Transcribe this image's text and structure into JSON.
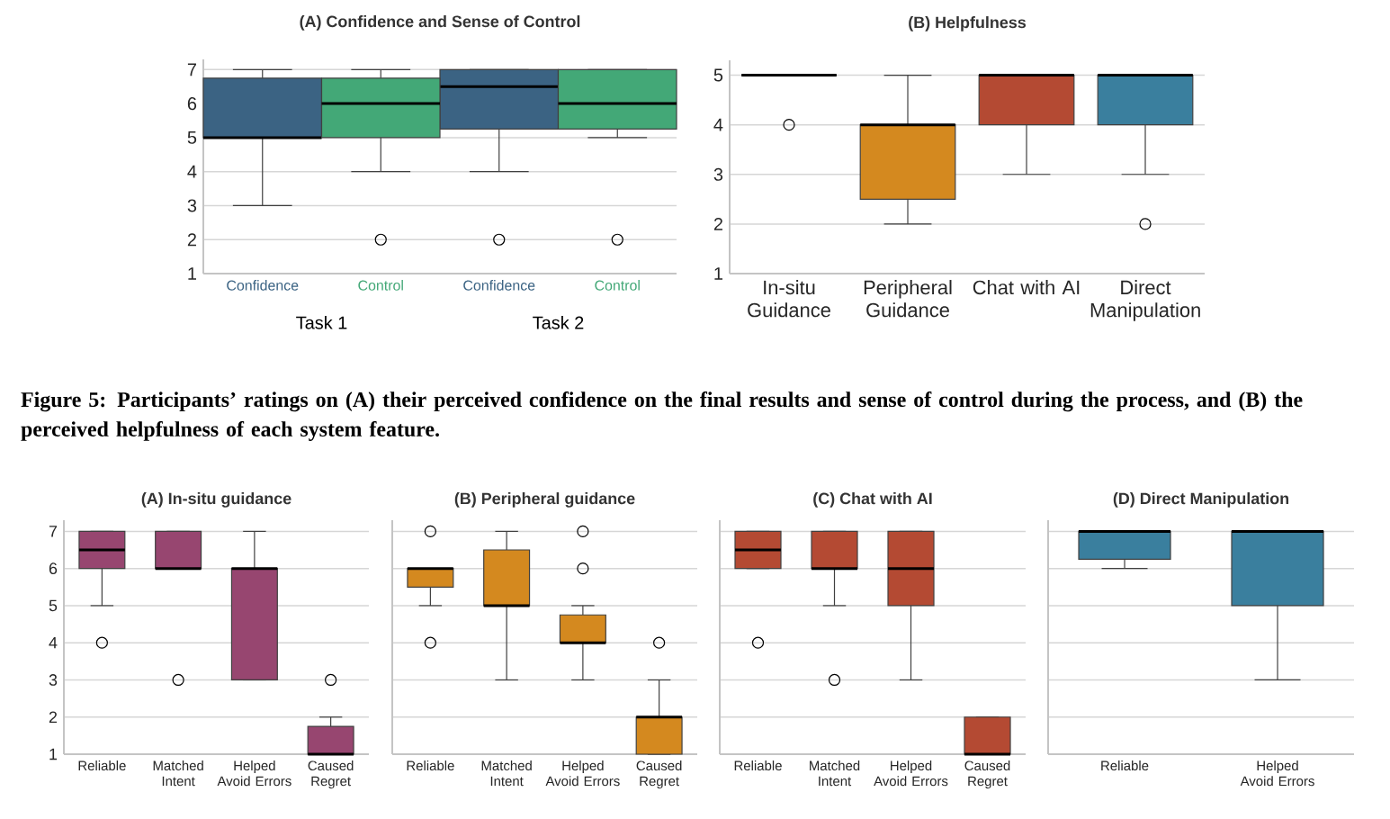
{
  "chart_data": [
    {
      "type": "box",
      "title": "(A) Confidence and Sense of Control",
      "categories": [
        "Task 1",
        "Task 2"
      ],
      "series": [
        {
          "name": "Confidence",
          "color": "#3b6383",
          "boxes": [
            {
              "low": 3,
              "q1": 5,
              "median": 5,
              "q3": 6.75,
              "high": 7
            },
            {
              "low": 4,
              "q1": 5.25,
              "median": 6.5,
              "q3": 7,
              "high": 7,
              "outliers": [
                2
              ]
            }
          ]
        },
        {
          "name": "Control",
          "color": "#43a877",
          "boxes": [
            {
              "low": 4,
              "q1": 5,
              "median": 6,
              "q3": 6.75,
              "high": 7,
              "outliers": [
                2
              ]
            },
            {
              "low": 5,
              "q1": 5.25,
              "median": 6,
              "q3": 7,
              "high": 7,
              "outliers": [
                2
              ]
            }
          ]
        }
      ],
      "ylim": [
        1,
        7.3
      ],
      "yticks": [
        1,
        2,
        3,
        4,
        5,
        6,
        7
      ],
      "grid": "y",
      "annotations": [
        "Figure 5: Participants’ ratings on (A) their perceived confidence on the final results and sense of control during the process, and (B) the perceived helpfulness of each system feature."
      ]
    },
    {
      "type": "box",
      "title": "(B) Helpfulness",
      "categories": [
        "In-situ Guidance",
        "Peripheral Guidance",
        "Chat with AI",
        "Direct Manipulation"
      ],
      "colors": [
        "#404040",
        "#d4891f",
        "#b44a33",
        "#3a7f9e"
      ],
      "boxes": [
        {
          "low": 5,
          "q1": 5,
          "median": 5,
          "q3": 5,
          "high": 5,
          "outliers": [
            4
          ]
        },
        {
          "low": 2,
          "q1": 2.5,
          "median": 4,
          "q3": 4,
          "high": 5
        },
        {
          "low": 3,
          "q1": 4,
          "median": 5,
          "q3": 5,
          "high": 5
        },
        {
          "low": 3,
          "q1": 4,
          "median": 5,
          "q3": 5,
          "high": 5,
          "outliers": [
            2
          ]
        }
      ],
      "ylim": [
        1,
        5.3
      ],
      "yticks": [
        1,
        2,
        3,
        4,
        5
      ],
      "grid": "y"
    },
    {
      "type": "box",
      "title": "(A) In-situ guidance",
      "categories": [
        "Reliable",
        "Matched Intent",
        "Helped Avoid Errors",
        "Caused Regret"
      ],
      "colors": [
        "#974670",
        "#974670",
        "#974670",
        "#974670"
      ],
      "boxes": [
        {
          "low": 5,
          "q1": 6,
          "median": 6.5,
          "q3": 7,
          "high": 7,
          "outliers": [
            4
          ]
        },
        {
          "low": 6,
          "q1": 6,
          "median": 6,
          "q3": 7,
          "high": 7,
          "outliers": [
            3
          ]
        },
        {
          "low": 3,
          "q1": 3,
          "median": 6,
          "q3": 6,
          "high": 7
        },
        {
          "low": 1,
          "q1": 1,
          "median": 1,
          "q3": 1.75,
          "high": 2,
          "outliers": [
            3
          ]
        }
      ],
      "ylim": [
        1,
        7.3
      ],
      "yticks": [
        1,
        2,
        3,
        4,
        5,
        6,
        7
      ],
      "grid": "y"
    },
    {
      "type": "box",
      "title": "(B) Peripheral guidance",
      "categories": [
        "Reliable",
        "Matched Intent",
        "Helped Avoid Errors",
        "Caused Regret"
      ],
      "colors": [
        "#d4891f",
        "#d4891f",
        "#d4891f",
        "#d4891f"
      ],
      "boxes": [
        {
          "low": 5,
          "q1": 5.5,
          "median": 6,
          "q3": 6,
          "high": 6,
          "outliers": [
            4,
            7
          ]
        },
        {
          "low": 3,
          "q1": 5,
          "median": 5,
          "q3": 6.5,
          "high": 7
        },
        {
          "low": 3,
          "q1": 4,
          "median": 4,
          "q3": 4.75,
          "high": 5,
          "outliers": [
            6,
            7
          ]
        },
        {
          "low": 1,
          "q1": 1,
          "median": 2,
          "q3": 2,
          "high": 3,
          "outliers": [
            4
          ]
        }
      ],
      "ylim": [
        1,
        7.3
      ],
      "yticks": [
        1,
        2,
        3,
        4,
        5,
        6,
        7
      ],
      "grid": "y",
      "tick_labels": "x"
    },
    {
      "type": "box",
      "title": "(C) Chat with AI",
      "categories": [
        "Reliable",
        "Matched Intent",
        "Helped Avoid Errors",
        "Caused Regret"
      ],
      "colors": [
        "#b44a33",
        "#b44a33",
        "#b44a33",
        "#b44a33"
      ],
      "boxes": [
        {
          "low": 6,
          "q1": 6,
          "median": 6.5,
          "q3": 7,
          "high": 7,
          "outliers": [
            4
          ]
        },
        {
          "low": 5,
          "q1": 6,
          "median": 6,
          "q3": 7,
          "high": 7,
          "outliers": [
            3
          ]
        },
        {
          "low": 3,
          "q1": 5,
          "median": 6,
          "q3": 7,
          "high": 7
        },
        {
          "low": 1,
          "q1": 1,
          "median": 1,
          "q3": 2,
          "high": 2
        }
      ],
      "ylim": [
        1,
        7.3
      ],
      "yticks": [
        1,
        2,
        3,
        4,
        5,
        6,
        7
      ],
      "grid": "y",
      "tick_labels": "x"
    },
    {
      "type": "box",
      "title": "(D) Direct Manipulation",
      "categories": [
        "Reliable",
        "Helped Avoid Errors"
      ],
      "colors": [
        "#3a7f9e",
        "#3a7f9e"
      ],
      "boxes": [
        {
          "low": 6,
          "q1": 6.25,
          "median": 7,
          "q3": 7,
          "high": 7
        },
        {
          "low": 3,
          "q1": 5,
          "median": 7,
          "q3": 7,
          "high": 7
        }
      ],
      "ylim": [
        1,
        7.3
      ],
      "yticks": [
        1,
        2,
        3,
        4,
        5,
        6,
        7
      ],
      "grid": "y",
      "tick_labels": "x"
    }
  ]
}
